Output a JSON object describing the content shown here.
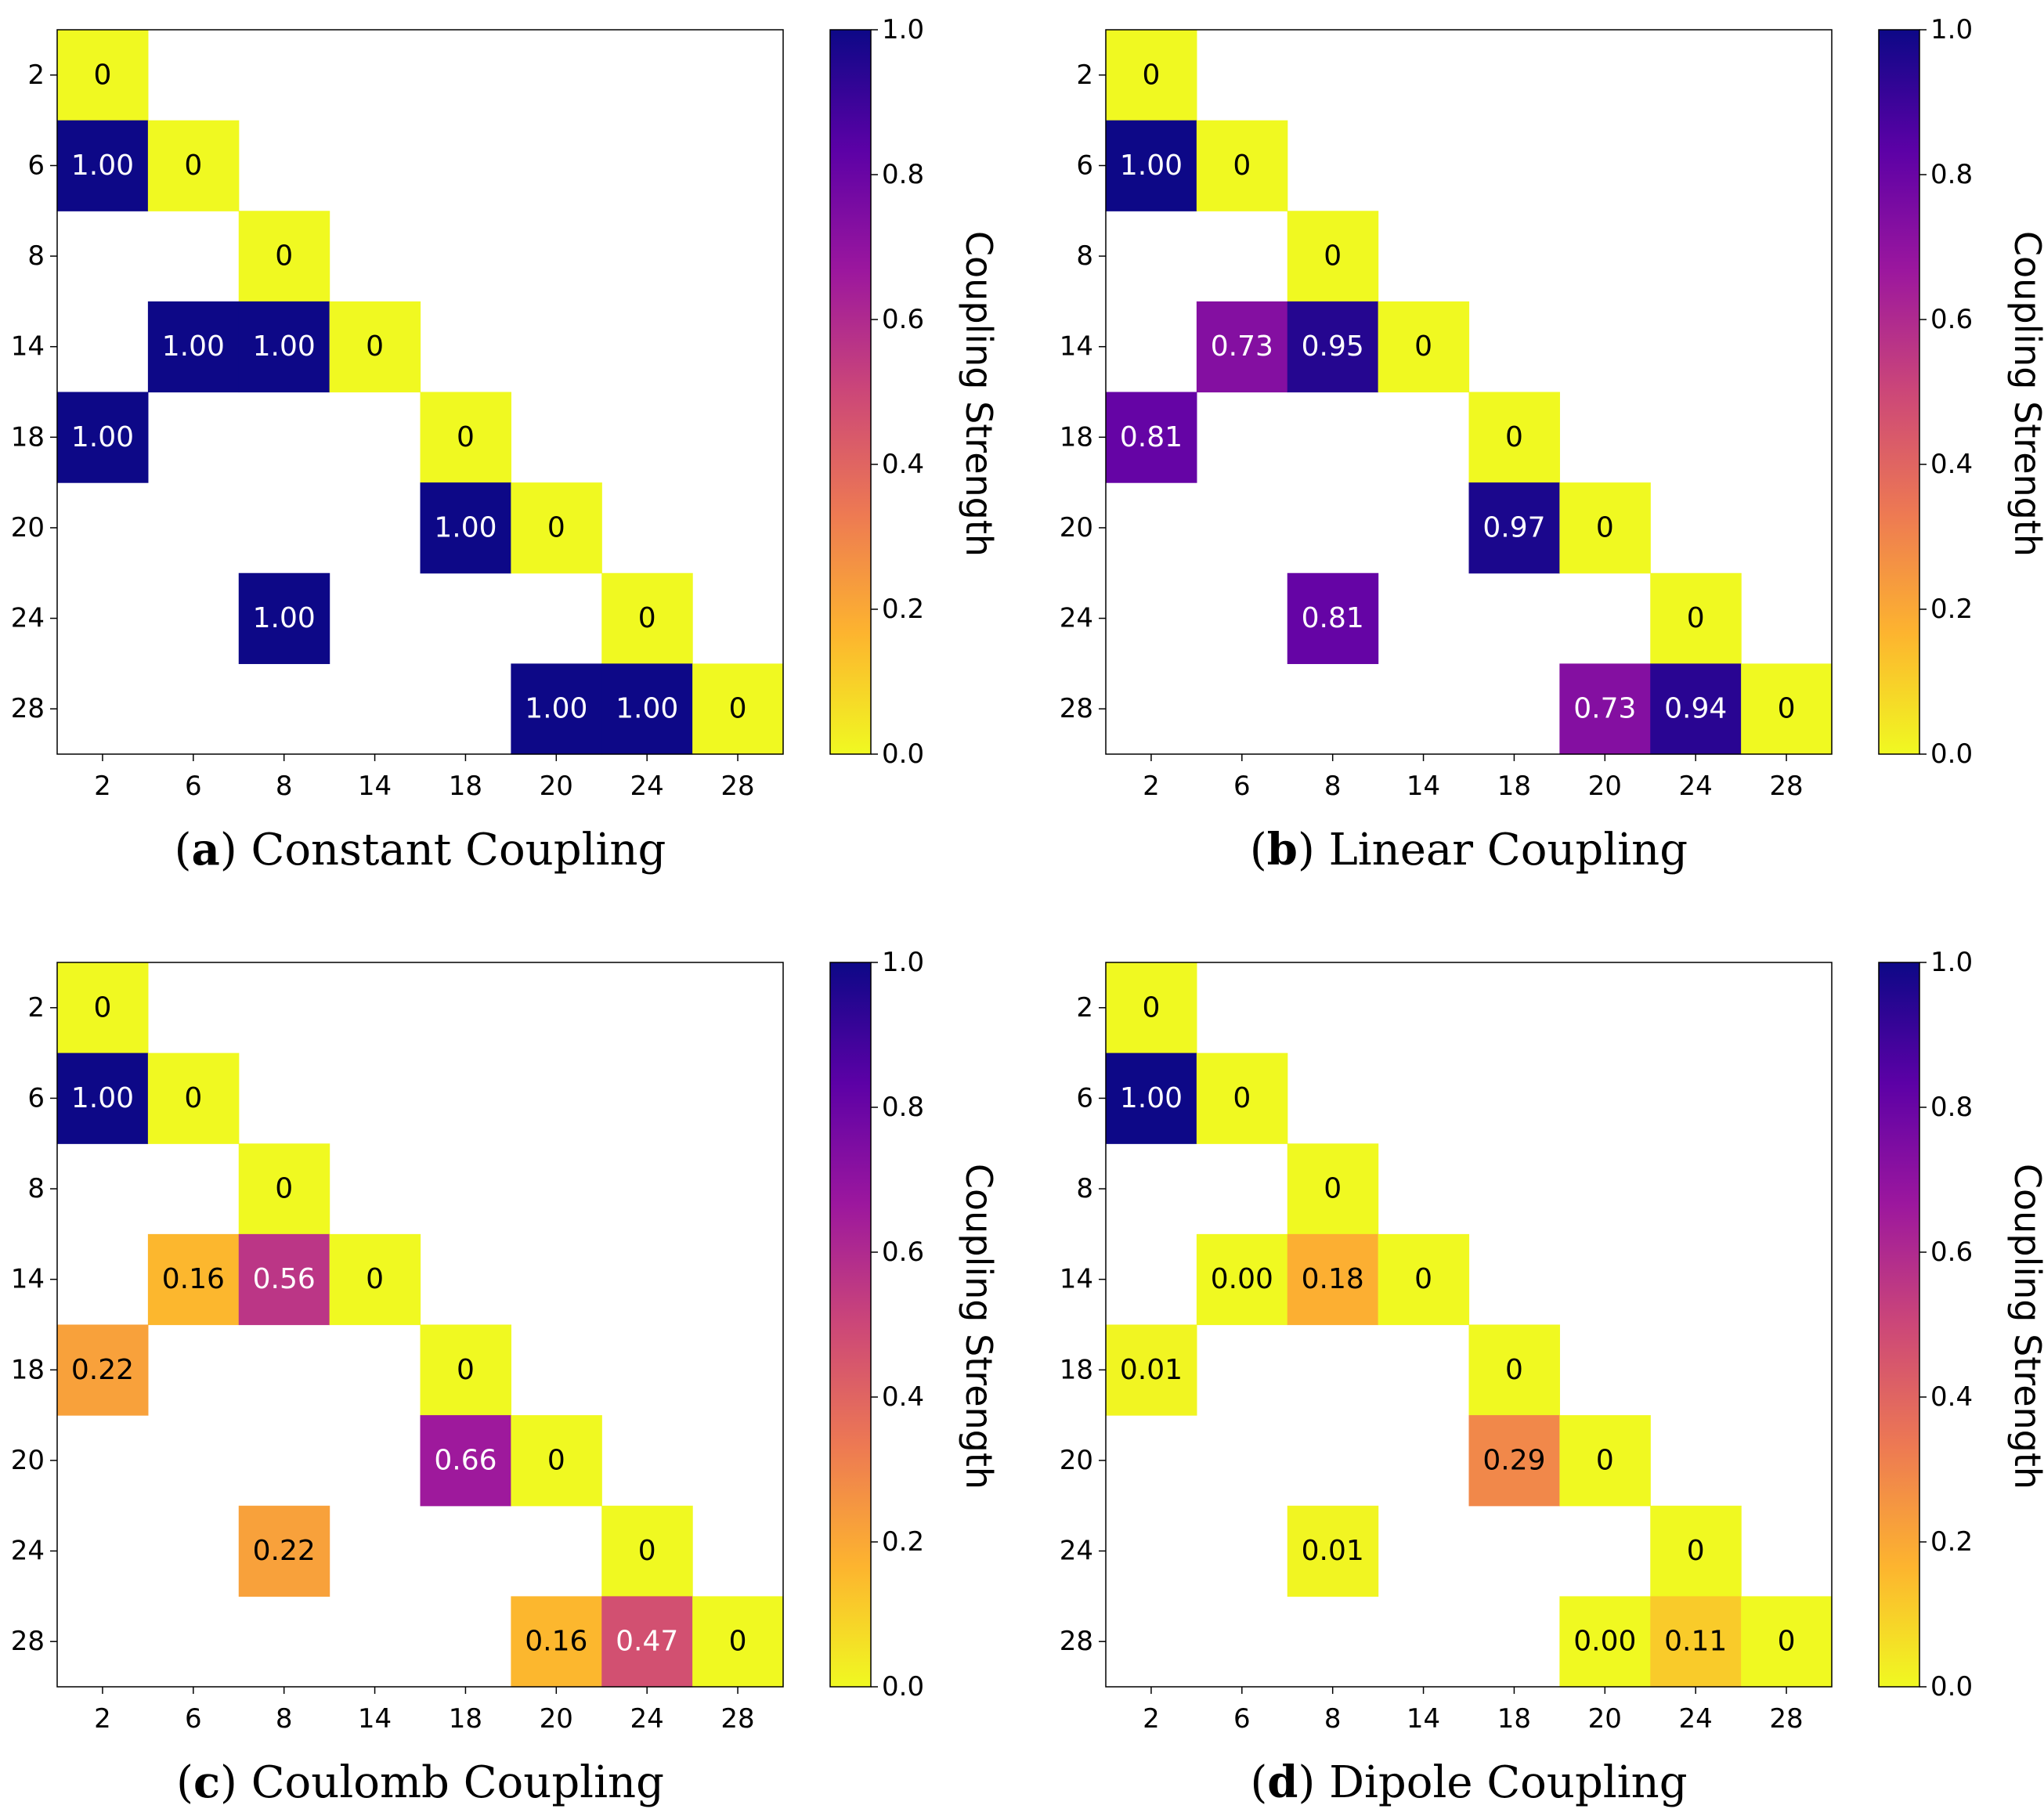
{
  "figure": {
    "colorbar_label": "Coupling Strength",
    "colorbar_ticks": [
      "0.0",
      "0.2",
      "0.4",
      "0.6",
      "0.8",
      "1.0"
    ],
    "colormap": "plasma_r",
    "colormap_stops": [
      "#f0f921",
      "#fdb42f",
      "#ed7953",
      "#cc4778",
      "#9c179e",
      "#5c01a6",
      "#0d0887"
    ]
  },
  "chart_data": [
    {
      "type": "heatmap",
      "caption_letter": "a",
      "caption": "Constant Coupling",
      "x_labels": [
        "2",
        "6",
        "8",
        "14",
        "18",
        "20",
        "24",
        "28"
      ],
      "y_labels": [
        "2",
        "6",
        "8",
        "14",
        "18",
        "20",
        "24",
        "28"
      ],
      "clim": [
        0.0,
        1.0
      ],
      "cells": [
        {
          "row": 0,
          "col": 0,
          "value": 0,
          "label": "0"
        },
        {
          "row": 1,
          "col": 0,
          "value": 1.0,
          "label": "1.00"
        },
        {
          "row": 1,
          "col": 1,
          "value": 0,
          "label": "0"
        },
        {
          "row": 2,
          "col": 2,
          "value": 0,
          "label": "0"
        },
        {
          "row": 3,
          "col": 1,
          "value": 1.0,
          "label": "1.00"
        },
        {
          "row": 3,
          "col": 2,
          "value": 1.0,
          "label": "1.00"
        },
        {
          "row": 3,
          "col": 3,
          "value": 0,
          "label": "0"
        },
        {
          "row": 4,
          "col": 0,
          "value": 1.0,
          "label": "1.00"
        },
        {
          "row": 4,
          "col": 4,
          "value": 0,
          "label": "0"
        },
        {
          "row": 5,
          "col": 4,
          "value": 1.0,
          "label": "1.00"
        },
        {
          "row": 5,
          "col": 5,
          "value": 0,
          "label": "0"
        },
        {
          "row": 6,
          "col": 2,
          "value": 1.0,
          "label": "1.00"
        },
        {
          "row": 6,
          "col": 6,
          "value": 0,
          "label": "0"
        },
        {
          "row": 7,
          "col": 5,
          "value": 1.0,
          "label": "1.00"
        },
        {
          "row": 7,
          "col": 6,
          "value": 1.0,
          "label": "1.00"
        },
        {
          "row": 7,
          "col": 7,
          "value": 0,
          "label": "0"
        }
      ]
    },
    {
      "type": "heatmap",
      "caption_letter": "b",
      "caption": "Linear Coupling",
      "x_labels": [
        "2",
        "6",
        "8",
        "14",
        "18",
        "20",
        "24",
        "28"
      ],
      "y_labels": [
        "2",
        "6",
        "8",
        "14",
        "18",
        "20",
        "24",
        "28"
      ],
      "clim": [
        0.0,
        1.0
      ],
      "cells": [
        {
          "row": 0,
          "col": 0,
          "value": 0,
          "label": "0"
        },
        {
          "row": 1,
          "col": 0,
          "value": 1.0,
          "label": "1.00"
        },
        {
          "row": 1,
          "col": 1,
          "value": 0,
          "label": "0"
        },
        {
          "row": 2,
          "col": 2,
          "value": 0,
          "label": "0"
        },
        {
          "row": 3,
          "col": 1,
          "value": 0.73,
          "label": "0.73"
        },
        {
          "row": 3,
          "col": 2,
          "value": 0.95,
          "label": "0.95"
        },
        {
          "row": 3,
          "col": 3,
          "value": 0,
          "label": "0"
        },
        {
          "row": 4,
          "col": 0,
          "value": 0.81,
          "label": "0.81"
        },
        {
          "row": 4,
          "col": 4,
          "value": 0,
          "label": "0"
        },
        {
          "row": 5,
          "col": 4,
          "value": 0.97,
          "label": "0.97"
        },
        {
          "row": 5,
          "col": 5,
          "value": 0,
          "label": "0"
        },
        {
          "row": 6,
          "col": 2,
          "value": 0.81,
          "label": "0.81"
        },
        {
          "row": 6,
          "col": 6,
          "value": 0,
          "label": "0"
        },
        {
          "row": 7,
          "col": 5,
          "value": 0.73,
          "label": "0.73"
        },
        {
          "row": 7,
          "col": 6,
          "value": 0.94,
          "label": "0.94"
        },
        {
          "row": 7,
          "col": 7,
          "value": 0,
          "label": "0"
        }
      ]
    },
    {
      "type": "heatmap",
      "caption_letter": "c",
      "caption": "Coulomb Coupling",
      "x_labels": [
        "2",
        "6",
        "8",
        "14",
        "18",
        "20",
        "24",
        "28"
      ],
      "y_labels": [
        "2",
        "6",
        "8",
        "14",
        "18",
        "20",
        "24",
        "28"
      ],
      "clim": [
        0.0,
        1.0
      ],
      "cells": [
        {
          "row": 0,
          "col": 0,
          "value": 0,
          "label": "0"
        },
        {
          "row": 1,
          "col": 0,
          "value": 1.0,
          "label": "1.00"
        },
        {
          "row": 1,
          "col": 1,
          "value": 0,
          "label": "0"
        },
        {
          "row": 2,
          "col": 2,
          "value": 0,
          "label": "0"
        },
        {
          "row": 3,
          "col": 1,
          "value": 0.16,
          "label": "0.16"
        },
        {
          "row": 3,
          "col": 2,
          "value": 0.56,
          "label": "0.56"
        },
        {
          "row": 3,
          "col": 3,
          "value": 0,
          "label": "0"
        },
        {
          "row": 4,
          "col": 0,
          "value": 0.22,
          "label": "0.22"
        },
        {
          "row": 4,
          "col": 4,
          "value": 0,
          "label": "0"
        },
        {
          "row": 5,
          "col": 4,
          "value": 0.66,
          "label": "0.66"
        },
        {
          "row": 5,
          "col": 5,
          "value": 0,
          "label": "0"
        },
        {
          "row": 6,
          "col": 2,
          "value": 0.22,
          "label": "0.22"
        },
        {
          "row": 6,
          "col": 6,
          "value": 0,
          "label": "0"
        },
        {
          "row": 7,
          "col": 5,
          "value": 0.16,
          "label": "0.16"
        },
        {
          "row": 7,
          "col": 6,
          "value": 0.47,
          "label": "0.47"
        },
        {
          "row": 7,
          "col": 7,
          "value": 0,
          "label": "0"
        }
      ]
    },
    {
      "type": "heatmap",
      "caption_letter": "d",
      "caption": "Dipole Coupling",
      "x_labels": [
        "2",
        "6",
        "8",
        "14",
        "18",
        "20",
        "24",
        "28"
      ],
      "y_labels": [
        "2",
        "6",
        "8",
        "14",
        "18",
        "20",
        "24",
        "28"
      ],
      "clim": [
        0.0,
        1.0
      ],
      "cells": [
        {
          "row": 0,
          "col": 0,
          "value": 0,
          "label": "0"
        },
        {
          "row": 1,
          "col": 0,
          "value": 1.0,
          "label": "1.00"
        },
        {
          "row": 1,
          "col": 1,
          "value": 0,
          "label": "0"
        },
        {
          "row": 2,
          "col": 2,
          "value": 0,
          "label": "0"
        },
        {
          "row": 3,
          "col": 1,
          "value": 0.0,
          "label": "0.00"
        },
        {
          "row": 3,
          "col": 2,
          "value": 0.18,
          "label": "0.18"
        },
        {
          "row": 3,
          "col": 3,
          "value": 0,
          "label": "0"
        },
        {
          "row": 4,
          "col": 0,
          "value": 0.01,
          "label": "0.01"
        },
        {
          "row": 4,
          "col": 4,
          "value": 0,
          "label": "0"
        },
        {
          "row": 5,
          "col": 4,
          "value": 0.29,
          "label": "0.29"
        },
        {
          "row": 5,
          "col": 5,
          "value": 0,
          "label": "0"
        },
        {
          "row": 6,
          "col": 2,
          "value": 0.01,
          "label": "0.01"
        },
        {
          "row": 6,
          "col": 6,
          "value": 0,
          "label": "0"
        },
        {
          "row": 7,
          "col": 5,
          "value": 0.0,
          "label": "0.00"
        },
        {
          "row": 7,
          "col": 6,
          "value": 0.11,
          "label": "0.11"
        },
        {
          "row": 7,
          "col": 7,
          "value": 0,
          "label": "0"
        }
      ]
    }
  ]
}
